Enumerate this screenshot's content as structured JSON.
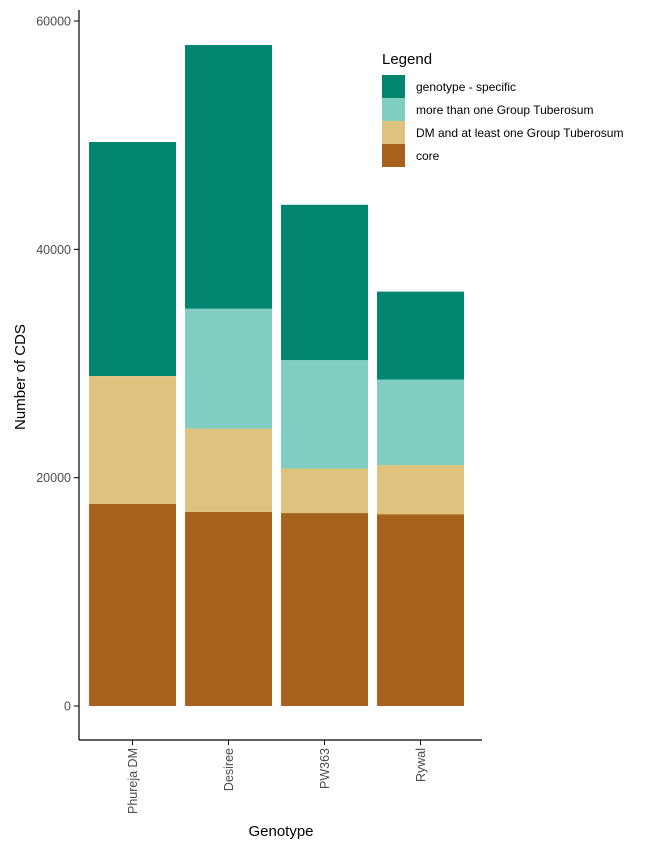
{
  "chart_data": {
    "type": "bar",
    "stacked": true,
    "title": "",
    "xlabel": "Genotype",
    "ylabel": "Number of CDS",
    "categories": [
      "Phureja DM",
      "Desiree",
      "PW363",
      "Rywal"
    ],
    "ylim": [
      0,
      60000
    ],
    "yticks": [
      0,
      20000,
      40000,
      60000
    ],
    "grid": false,
    "legend_title": "Legend",
    "legend_position": "top-right",
    "series": [
      {
        "name": "core",
        "color": "#a6611a",
        "values": [
          17700,
          17000,
          16900,
          16800
        ]
      },
      {
        "name": "DM and at least one Group Tuberosum",
        "color": "#dfc27d",
        "values": [
          11200,
          7300,
          3900,
          4300
        ]
      },
      {
        "name": "more than one Group Tuberosum",
        "color": "#80cdc1",
        "values": [
          0,
          10500,
          9500,
          7500
        ]
      },
      {
        "name": "genotype - specific",
        "color": "#018571",
        "values": [
          20500,
          23100,
          13600,
          7700
        ]
      }
    ],
    "legend_order": [
      "genotype - specific",
      "more than one Group Tuberosum",
      "DM and at least one Group Tuberosum",
      "core"
    ]
  }
}
